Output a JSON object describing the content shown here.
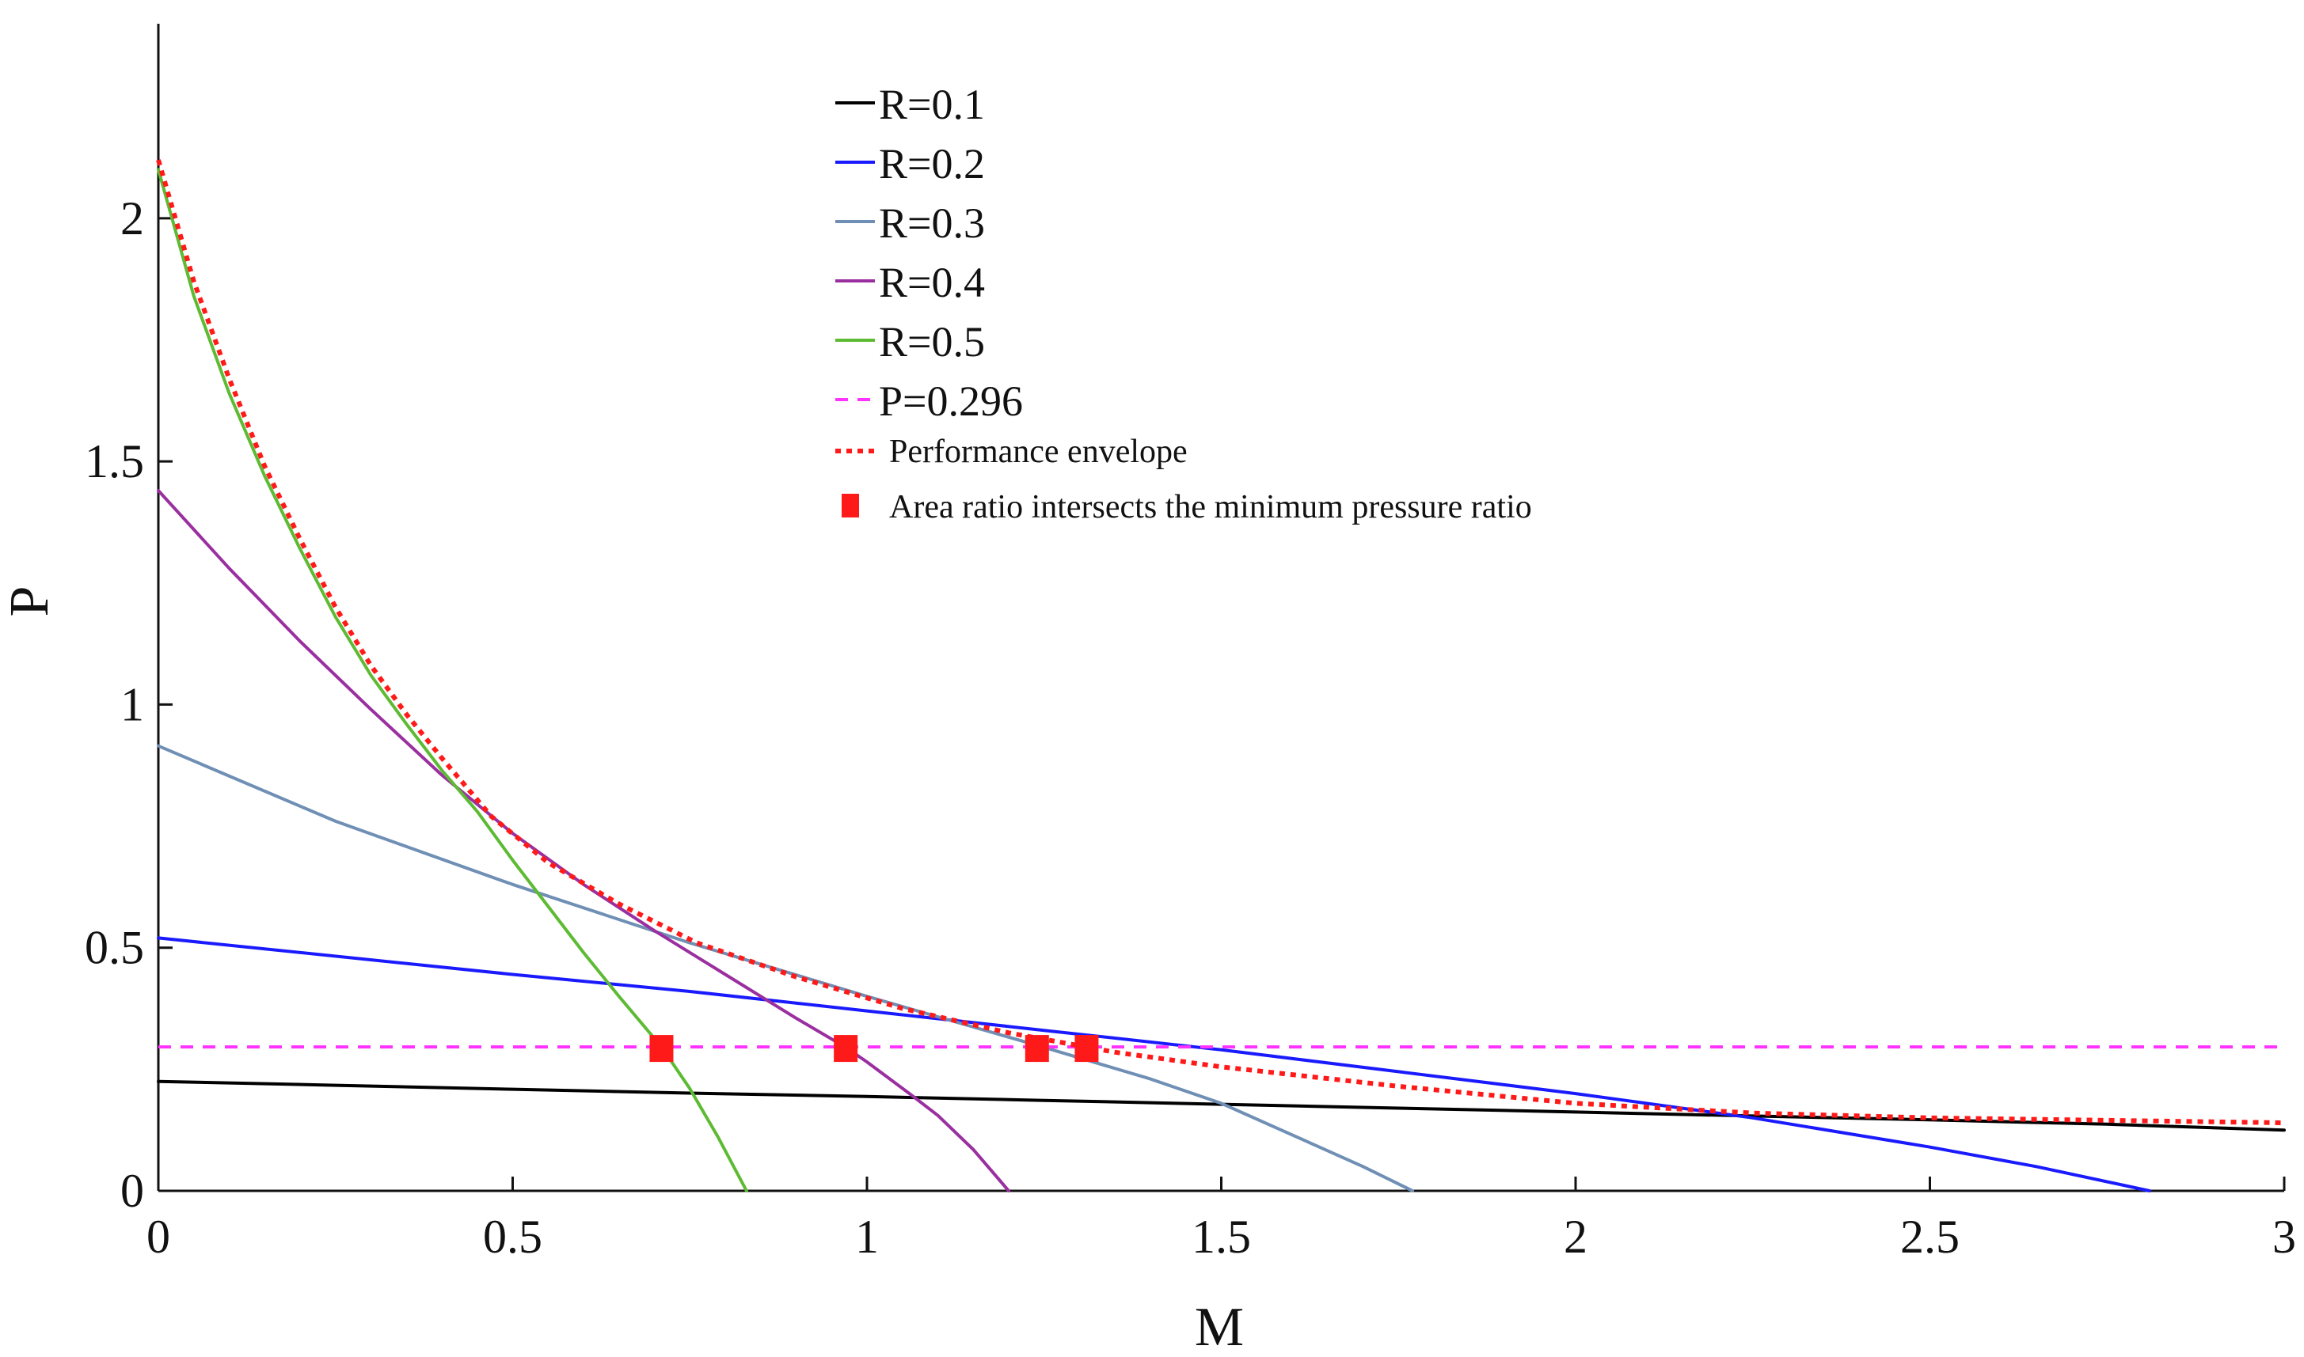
{
  "chart_data": {
    "type": "line",
    "title": "",
    "xlabel": "M",
    "ylabel": "P",
    "xlim": [
      0,
      3
    ],
    "ylim": [
      0,
      2.4
    ],
    "xticks": [
      {
        "value": 0,
        "label": "0"
      },
      {
        "value": 0.5,
        "label": "0.5"
      },
      {
        "value": 1,
        "label": "1"
      },
      {
        "value": 1.5,
        "label": "1.5"
      },
      {
        "value": 2,
        "label": "2"
      },
      {
        "value": 2.5,
        "label": "2.5"
      },
      {
        "value": 3,
        "label": "3"
      }
    ],
    "yticks": [
      {
        "value": 0,
        "label": "0"
      },
      {
        "value": 0.5,
        "label": "0.5"
      },
      {
        "value": 1,
        "label": "1"
      },
      {
        "value": 1.5,
        "label": "1.5"
      },
      {
        "value": 2,
        "label": "2"
      }
    ],
    "grid": false,
    "legend_position": "top-center",
    "series": [
      {
        "name": "R=0.1",
        "color": "#000000",
        "style": "solid",
        "x": [
          0,
          0.25,
          0.5,
          0.75,
          1,
          1.25,
          1.5,
          1.75,
          2,
          2.25,
          2.5,
          2.75,
          3
        ],
        "y": [
          0.225,
          0.217,
          0.209,
          0.201,
          0.194,
          0.186,
          0.178,
          0.17,
          0.162,
          0.154,
          0.146,
          0.137,
          0.125
        ]
      },
      {
        "name": "R=0.2",
        "color": "#1a1aff",
        "style": "solid",
        "x": [
          0,
          0.5,
          0.75,
          1,
          1.25,
          1.5,
          1.75,
          2,
          2.25,
          2.5,
          2.65,
          2.81
        ],
        "y": [
          0.52,
          0.445,
          0.41,
          0.37,
          0.33,
          0.29,
          0.245,
          0.2,
          0.15,
          0.09,
          0.05,
          0.0
        ]
      },
      {
        "name": "R=0.3",
        "color": "#6f8fb5",
        "style": "solid",
        "x": [
          0,
          0.25,
          0.5,
          0.75,
          1,
          1.25,
          1.4,
          1.5,
          1.6,
          1.7,
          1.77
        ],
        "y": [
          0.915,
          0.76,
          0.63,
          0.51,
          0.4,
          0.295,
          0.23,
          0.18,
          0.115,
          0.05,
          0.0
        ]
      },
      {
        "name": "R=0.4",
        "color": "#9a2fa0",
        "style": "solid",
        "x": [
          0,
          0.1,
          0.2,
          0.3,
          0.4,
          0.5,
          0.6,
          0.7,
          0.8,
          0.9,
          0.97,
          1.0,
          1.06,
          1.1,
          1.15,
          1.2
        ],
        "y": [
          1.44,
          1.28,
          1.13,
          0.99,
          0.855,
          0.735,
          0.63,
          0.535,
          0.445,
          0.355,
          0.295,
          0.265,
          0.2,
          0.155,
          0.085,
          0.0
        ]
      },
      {
        "name": "R=0.5",
        "color": "#5dbb33",
        "style": "solid",
        "x": [
          0,
          0.05,
          0.1,
          0.15,
          0.2,
          0.25,
          0.3,
          0.35,
          0.4,
          0.45,
          0.5,
          0.55,
          0.6,
          0.65,
          0.71,
          0.75,
          0.79,
          0.83
        ],
        "y": [
          2.1,
          1.84,
          1.64,
          1.47,
          1.32,
          1.18,
          1.06,
          0.96,
          0.865,
          0.78,
          0.68,
          0.585,
          0.49,
          0.4,
          0.296,
          0.21,
          0.11,
          0.0
        ]
      },
      {
        "name": "P=0.296",
        "color": "#ff33ff",
        "style": "dashed",
        "x": [
          0,
          3
        ],
        "y": [
          0.296,
          0.296
        ]
      },
      {
        "name": "Performance envelope",
        "color": "#ff1a1a",
        "style": "dotted",
        "x": [
          0,
          0.05,
          0.1,
          0.15,
          0.2,
          0.25,
          0.3,
          0.35,
          0.4,
          0.47,
          0.55,
          0.65,
          0.76,
          0.9,
          1.05,
          1.2,
          1.35,
          1.5,
          1.75,
          2.0,
          2.25,
          2.5,
          2.75,
          3.0
        ],
        "y": [
          2.12,
          1.87,
          1.67,
          1.49,
          1.34,
          1.2,
          1.08,
          0.98,
          0.89,
          0.77,
          0.675,
          0.59,
          0.51,
          0.44,
          0.375,
          0.325,
          0.285,
          0.255,
          0.215,
          0.18,
          0.16,
          0.15,
          0.145,
          0.14
        ]
      }
    ],
    "markers": {
      "name": "Area ratio intersects the minimum pressure ratio",
      "color": "#ff1a1a",
      "shape": "square",
      "points": [
        {
          "x": 0.71,
          "y": 0.296
        },
        {
          "x": 0.97,
          "y": 0.296
        },
        {
          "x": 1.24,
          "y": 0.296
        },
        {
          "x": 1.31,
          "y": 0.296
        }
      ]
    }
  }
}
